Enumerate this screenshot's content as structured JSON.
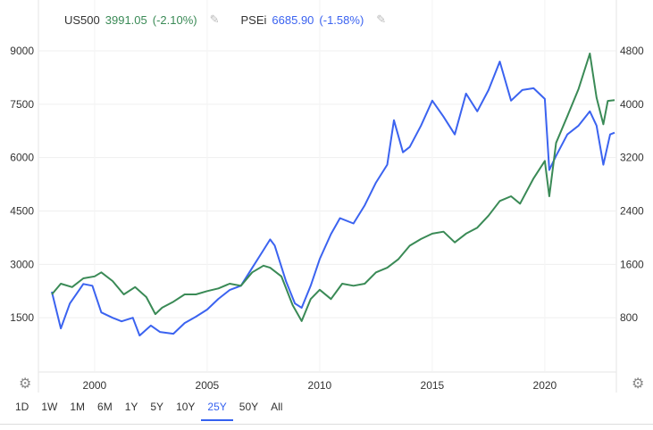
{
  "legend": {
    "series1": {
      "name": "US500",
      "value": "3991.05",
      "change": "(-2.10%)",
      "color": "#3a8a56",
      "icon": "pencil-icon"
    },
    "series2": {
      "name": "PSEi",
      "value": "6685.90",
      "change": "(-1.58%)",
      "color": "#3b63f0",
      "icon": "pencil-icon"
    }
  },
  "ranges": [
    "1D",
    "1W",
    "1M",
    "6M",
    "1Y",
    "5Y",
    "10Y",
    "25Y",
    "50Y",
    "All"
  ],
  "active_range": "25Y",
  "settings_icon": "gear-icon",
  "chart_data": {
    "type": "line",
    "xlim": [
      1998.1,
      2023.1
    ],
    "x_ticks": [
      "2000",
      "2005",
      "2010",
      "2015",
      "2020"
    ],
    "left_axis": {
      "ylim": [
        0,
        9000
      ],
      "ticks": [
        "1500",
        "3000",
        "4500",
        "6000",
        "7500",
        "9000"
      ],
      "series": "PSEi"
    },
    "right_axis": {
      "ylim": [
        0,
        4800
      ],
      "ticks": [
        "800",
        "1600",
        "2400",
        "3200",
        "4000",
        "4800"
      ],
      "series": "US500"
    },
    "grid": true,
    "legend_position": "top-left",
    "series": [
      {
        "name": "PSEi",
        "axis": "left",
        "color": "#3b63f0",
        "x": [
          1998.1,
          1998.5,
          1998.9,
          1999.5,
          1999.9,
          2000.3,
          2000.8,
          2001.2,
          2001.7,
          2002.0,
          2002.5,
          2002.9,
          2003.5,
          2004.0,
          2004.5,
          2005.0,
          2005.5,
          2006.0,
          2006.5,
          2007.0,
          2007.5,
          2007.8,
          2008.0,
          2008.5,
          2008.9,
          2009.2,
          2009.6,
          2010.0,
          2010.5,
          2010.9,
          2011.5,
          2012.0,
          2012.5,
          2013.0,
          2013.3,
          2013.7,
          2014.0,
          2014.5,
          2015.0,
          2015.5,
          2016.0,
          2016.5,
          2017.0,
          2017.5,
          2018.0,
          2018.5,
          2019.0,
          2019.5,
          2020.0,
          2020.2,
          2020.5,
          2021.0,
          2021.5,
          2022.0,
          2022.3,
          2022.6,
          2022.9,
          2023.1
        ],
        "y": [
          2230,
          1200,
          1900,
          2450,
          2400,
          1650,
          1500,
          1400,
          1500,
          1000,
          1280,
          1100,
          1050,
          1350,
          1530,
          1730,
          2030,
          2280,
          2400,
          2900,
          3400,
          3700,
          3530,
          2530,
          1900,
          1780,
          2400,
          3150,
          3850,
          4300,
          4150,
          4660,
          5300,
          5800,
          7050,
          6150,
          6300,
          6900,
          7600,
          7150,
          6650,
          7800,
          7300,
          7900,
          8700,
          7600,
          7900,
          7950,
          7650,
          5650,
          6050,
          6650,
          6900,
          7300,
          6900,
          5800,
          6650,
          6700
        ]
      },
      {
        "name": "US500",
        "axis": "right",
        "color": "#3a8a56",
        "x": [
          1998.1,
          1998.5,
          1999.0,
          1999.5,
          2000.0,
          2000.3,
          2000.8,
          2001.3,
          2001.8,
          2002.3,
          2002.7,
          2003.0,
          2003.5,
          2004.0,
          2004.5,
          2005.0,
          2005.5,
          2006.0,
          2006.5,
          2007.0,
          2007.5,
          2007.8,
          2008.3,
          2008.8,
          2009.2,
          2009.6,
          2010.0,
          2010.5,
          2011.0,
          2011.5,
          2012.0,
          2012.5,
          2013.0,
          2013.5,
          2014.0,
          2014.5,
          2015.0,
          2015.5,
          2016.0,
          2016.5,
          2017.0,
          2017.5,
          2018.0,
          2018.5,
          2018.9,
          2019.5,
          2020.0,
          2020.2,
          2020.5,
          2021.0,
          2021.5,
          2022.0,
          2022.3,
          2022.6,
          2022.8,
          2023.1
        ],
        "y": [
          1150,
          1310,
          1260,
          1390,
          1420,
          1480,
          1350,
          1150,
          1260,
          1110,
          855,
          950,
          1040,
          1150,
          1150,
          1200,
          1240,
          1310,
          1280,
          1480,
          1580,
          1550,
          1420,
          990,
          750,
          1080,
          1220,
          1080,
          1310,
          1280,
          1310,
          1480,
          1550,
          1680,
          1880,
          1980,
          2060,
          2090,
          1930,
          2060,
          2150,
          2330,
          2550,
          2620,
          2510,
          2890,
          3150,
          2620,
          3420,
          3820,
          4230,
          4760,
          4100,
          3700,
          4050,
          4060
        ]
      }
    ]
  }
}
